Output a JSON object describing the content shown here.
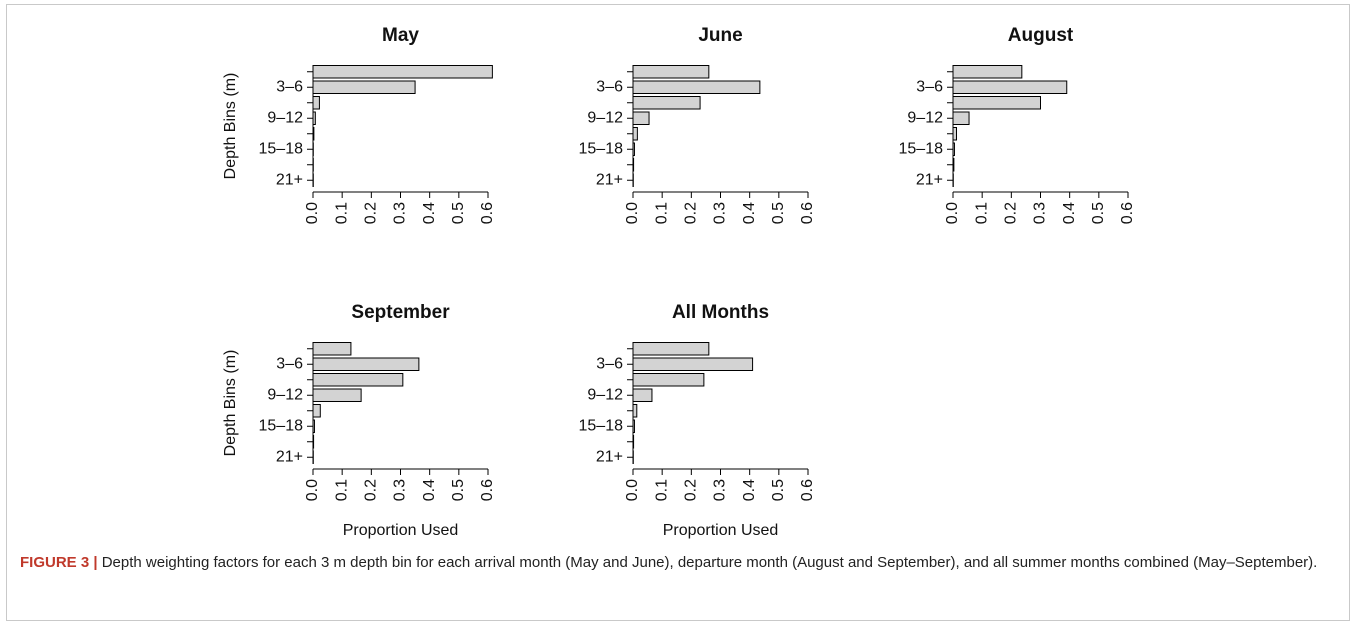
{
  "chart_data": [
    {
      "type": "bar",
      "orientation": "horizontal",
      "title": "May",
      "ylabel": "Depth Bins (m)",
      "categories": [
        null,
        "3–6",
        null,
        "9–12",
        null,
        "15–18",
        null,
        "21+"
      ],
      "values": [
        0.615,
        0.35,
        0.022,
        0.008,
        0.003,
        0.001,
        0.001,
        0.001
      ],
      "color": "#d3d3d3",
      "xlim": [
        0,
        0.6
      ],
      "xticks": [
        {
          "value": 0,
          "label": "0.0"
        },
        0.1,
        0.2,
        0.3,
        0.4,
        0.5,
        0.6
      ]
    },
    {
      "type": "bar",
      "orientation": "horizontal",
      "title": "June",
      "categories": [
        null,
        "3–6",
        null,
        "9–12",
        null,
        "15–18",
        null,
        "21+"
      ],
      "values": [
        0.26,
        0.435,
        0.23,
        0.055,
        0.015,
        0.005,
        0.002,
        0.001
      ],
      "color": "#d3d3d3",
      "xlim": [
        0,
        0.6
      ],
      "xticks": [
        {
          "value": 0,
          "label": "0.0"
        },
        0.1,
        0.2,
        0.3,
        0.4,
        0.5,
        0.6
      ]
    },
    {
      "type": "bar",
      "orientation": "horizontal",
      "title": "August",
      "categories": [
        null,
        "3–6",
        null,
        "9–12",
        null,
        "15–18",
        null,
        "21+"
      ],
      "values": [
        0.236,
        0.39,
        0.3,
        0.055,
        0.012,
        0.005,
        0.003,
        0.001
      ],
      "color": "#d3d3d3",
      "xlim": [
        0,
        0.6
      ],
      "xticks": [
        {
          "value": 0,
          "label": "0.0"
        },
        0.1,
        0.2,
        0.3,
        0.4,
        0.5,
        0.6
      ]
    },
    {
      "type": "bar",
      "orientation": "horizontal",
      "title": "September",
      "ylabel": "Depth Bins (m)",
      "xlabel": "Proportion Used",
      "categories": [
        null,
        "3–6",
        null,
        "9–12",
        null,
        "15–18",
        null,
        "21+"
      ],
      "values": [
        0.13,
        0.363,
        0.308,
        0.165,
        0.025,
        0.005,
        0.002,
        0.001
      ],
      "color": "#d3d3d3",
      "xlim": [
        0,
        0.6
      ],
      "xticks": [
        {
          "value": 0,
          "label": "0.0"
        },
        0.1,
        0.2,
        0.3,
        0.4,
        0.5,
        0.6
      ]
    },
    {
      "type": "bar",
      "orientation": "horizontal",
      "title": "All Months",
      "xlabel": "Proportion Used",
      "categories": [
        null,
        "3–6",
        null,
        "9–12",
        null,
        "15–18",
        null,
        "21+"
      ],
      "values": [
        0.26,
        0.41,
        0.243,
        0.065,
        0.013,
        0.005,
        0.002,
        0.001
      ],
      "color": "#d3d3d3",
      "xlim": [
        0,
        0.6
      ],
      "xticks": [
        {
          "value": 0,
          "label": "0.0"
        },
        0.1,
        0.2,
        0.3,
        0.4,
        0.5,
        0.6
      ]
    }
  ],
  "caption": {
    "label": "FIGURE 3 |",
    "text": " Depth weighting factors for each 3 m depth bin for each arrival month (May and June), departure month (August and September), and all summer months combined (May–September)."
  }
}
